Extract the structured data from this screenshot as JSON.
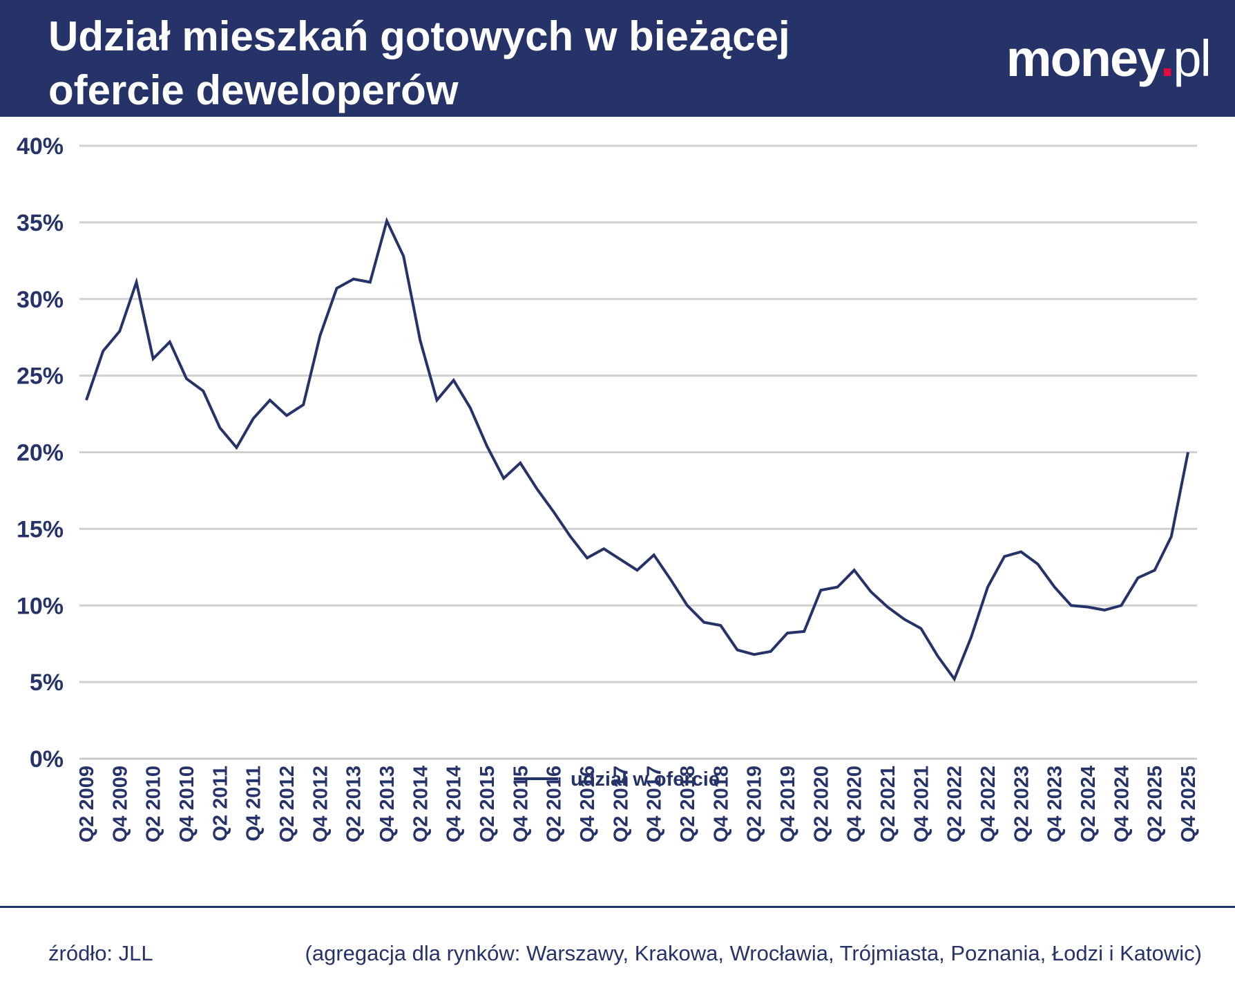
{
  "header": {
    "title_line1": "Udział mieszkań gotowych w bieżącej",
    "title_line2": "ofercie deweloperów",
    "logo_main": "money",
    "logo_dot": ".",
    "logo_suffix": "pl"
  },
  "colors": {
    "navy": "#253369",
    "accent_dot": "#e30b3b",
    "grid": "#d0d0d0"
  },
  "chart_data": {
    "type": "line",
    "x": [
      "Q2 2009",
      "Q3 2009",
      "Q4 2009",
      "Q1 2010",
      "Q2 2010",
      "Q3 2010",
      "Q4 2010",
      "Q1 2011",
      "Q2 2011",
      "Q3 2011",
      "Q4 2011",
      "Q1 2012",
      "Q2 2012",
      "Q3 2012",
      "Q4 2012",
      "Q1 2013",
      "Q2 2013",
      "Q3 2013",
      "Q4 2013",
      "Q1 2014",
      "Q2 2014",
      "Q3 2014",
      "Q4 2014",
      "Q1 2015",
      "Q2 2015",
      "Q3 2015",
      "Q4 2015",
      "Q1 2016",
      "Q2 2016",
      "Q3 2016",
      "Q4 2016",
      "Q1 2017",
      "Q2 2017",
      "Q3 2017",
      "Q4 2017",
      "Q1 2018",
      "Q2 2018",
      "Q3 2018",
      "Q4 2018",
      "Q1 2019",
      "Q2 2019",
      "Q3 2019",
      "Q4 2019",
      "Q1 2020",
      "Q2 2020",
      "Q3 2020",
      "Q4 2020",
      "Q1 2021",
      "Q2 2021",
      "Q3 2021",
      "Q4 2021",
      "Q1 2022",
      "Q2 2022",
      "Q3 2022",
      "Q4 2022",
      "Q1 2023",
      "Q2 2023",
      "Q3 2023",
      "Q4 2023",
      "Q1 2024",
      "Q2 2024",
      "Q3 2024",
      "Q4 2024",
      "Q1 2025",
      "Q2 2025",
      "Q3 2025",
      "Q4 2025"
    ],
    "series": [
      {
        "name": "udział w ofercie",
        "values": [
          23.4,
          26.6,
          27.9,
          31.1,
          26.1,
          27.2,
          24.8,
          24.0,
          21.6,
          20.3,
          22.2,
          23.4,
          22.4,
          23.1,
          27.6,
          30.7,
          31.3,
          31.1,
          35.1,
          32.8,
          27.3,
          23.4,
          24.7,
          22.9,
          20.4,
          18.3,
          19.3,
          17.6,
          16.1,
          14.5,
          13.1,
          13.7,
          13.0,
          12.3,
          13.3,
          11.7,
          10.0,
          8.9,
          8.7,
          7.1,
          6.8,
          7.0,
          8.2,
          8.3,
          11.0,
          11.2,
          12.3,
          10.9,
          9.9,
          9.1,
          8.5,
          6.7,
          5.2,
          7.9,
          11.2,
          13.2,
          13.5,
          12.7,
          11.2,
          10.0,
          9.9,
          9.7,
          10.0,
          11.8,
          12.3,
          14.5,
          20.0
        ]
      }
    ],
    "x_tick_labels": [
      "Q2 2009",
      "Q4 2009",
      "Q2 2010",
      "Q4 2010",
      "Q2 2011",
      "Q4 2011",
      "Q2 2012",
      "Q4 2012",
      "Q2 2013",
      "Q4 2013",
      "Q2 2014",
      "Q4 2014",
      "Q2 2015",
      "Q4 2015",
      "Q2 2016",
      "Q4 2016",
      "Q2 2017",
      "Q4 2017",
      "Q2 2018",
      "Q4 2018",
      "Q2 2019",
      "Q4 2019",
      "Q2 2020",
      "Q4 2020",
      "Q2 2021",
      "Q4 2021",
      "Q2 2022",
      "Q4 2022",
      "Q2 2023",
      "Q4 2023",
      "Q2 2024",
      "Q4 2024",
      "Q2 2025",
      "Q4 2025"
    ],
    "y_ticks": [
      0,
      5,
      10,
      15,
      20,
      25,
      30,
      35,
      40
    ],
    "y_tick_labels": [
      "0%",
      "5%",
      "10%",
      "15%",
      "20%",
      "25%",
      "30%",
      "35%",
      "40%"
    ],
    "ylim": [
      0,
      40
    ],
    "grid": "horizontal",
    "legend_position": "bottom-center",
    "legend_label": "udział w ofercie"
  },
  "footer": {
    "source": "źródło: JLL",
    "note": "(agregacja dla rynków: Warszawy, Krakowa, Wrocławia, Trójmiasta, Poznania, Łodzi i Katowic)"
  }
}
